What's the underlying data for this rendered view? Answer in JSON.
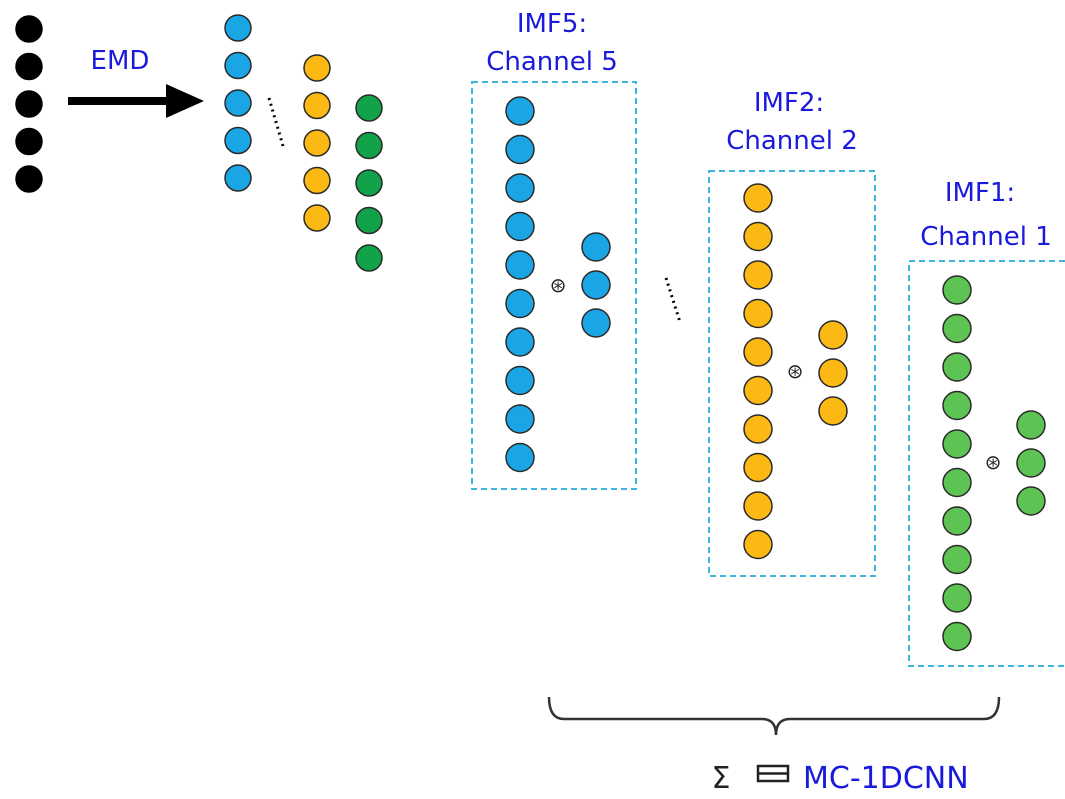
{
  "colors": {
    "text": "#1a1adc",
    "box": "#3cb6dd",
    "black_node": "#000000",
    "blue_node": "#1aa6e4",
    "yellow_node": "#fcb813",
    "dark_green_node": "#12a24a",
    "light_green_node": "#5dc352",
    "outline": "#2a2a2a"
  },
  "labels": {
    "emd": "EMD",
    "imf5_line1": "IMF5:",
    "imf5_line2": "Channel 5",
    "imf2_line1": "IMF2:",
    "imf2_line2": "Channel 2",
    "imf1_line1": "IMF1:",
    "imf1_line2": "Channel 1",
    "conv_symbol": "⊛",
    "sum_symbol": "Σ",
    "result": "MC-1DCNN"
  }
}
